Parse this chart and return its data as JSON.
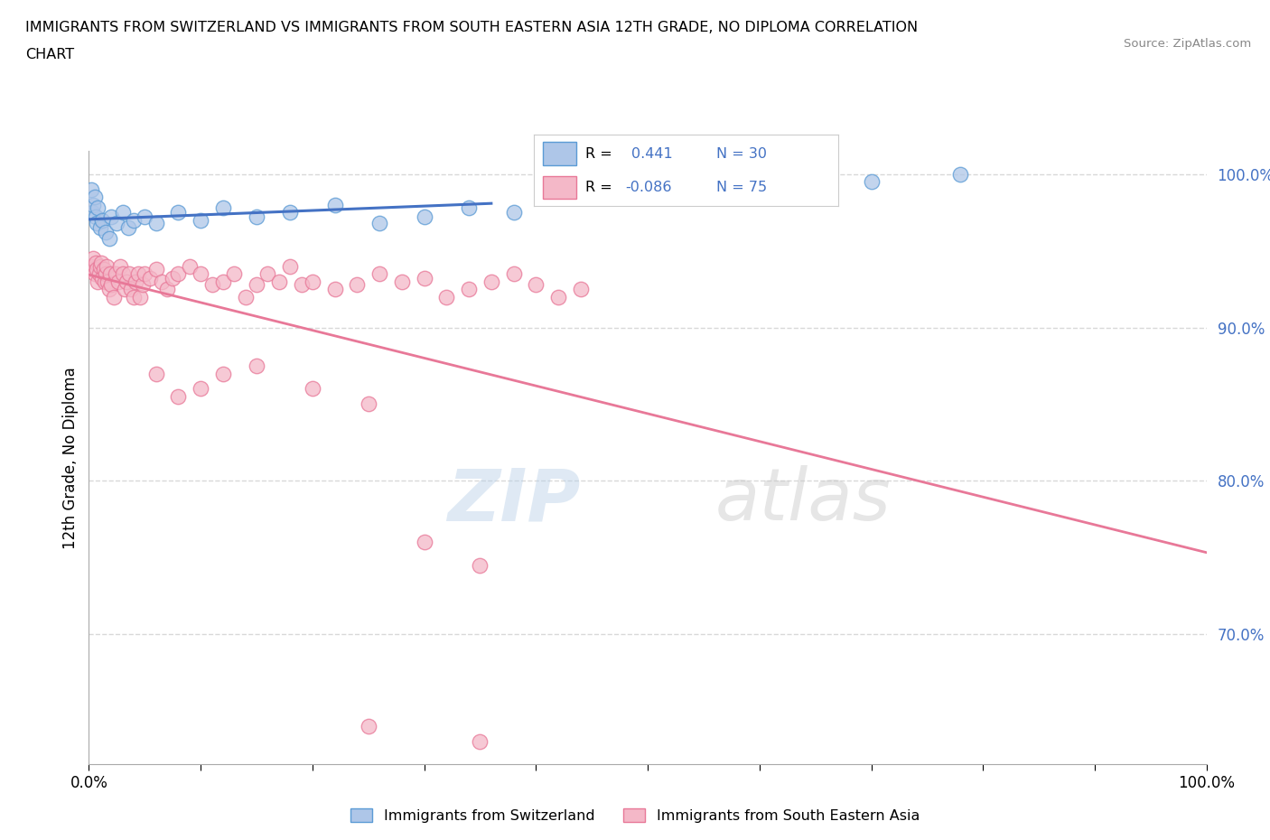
{
  "title_line1": "IMMIGRANTS FROM SWITZERLAND VS IMMIGRANTS FROM SOUTH EASTERN ASIA 12TH GRADE, NO DIPLOMA CORRELATION",
  "title_line2": "CHART",
  "source_text": "Source: ZipAtlas.com",
  "ylabel": "12th Grade, No Diploma",
  "color_swiss": "#aec6e8",
  "color_swiss_edge": "#5b9bd5",
  "color_swiss_line": "#4472c4",
  "color_sea": "#f4b8c8",
  "color_sea_edge": "#e87898",
  "color_sea_line": "#e87898",
  "legend_r1_val": "0.441",
  "legend_r2_val": "-0.086",
  "legend_n1": "30",
  "legend_n2": "75",
  "swiss_x": [
    0.002,
    0.003,
    0.004,
    0.005,
    0.006,
    0.007,
    0.008,
    0.01,
    0.012,
    0.015,
    0.018,
    0.02,
    0.025,
    0.03,
    0.035,
    0.04,
    0.05,
    0.06,
    0.08,
    0.1,
    0.12,
    0.15,
    0.18,
    0.22,
    0.26,
    0.3,
    0.34,
    0.38,
    0.7,
    0.78
  ],
  "swiss_y": [
    0.99,
    0.975,
    0.98,
    0.985,
    0.972,
    0.968,
    0.978,
    0.965,
    0.97,
    0.962,
    0.958,
    0.972,
    0.968,
    0.975,
    0.965,
    0.97,
    0.972,
    0.968,
    0.975,
    0.97,
    0.978,
    0.972,
    0.975,
    0.98,
    0.968,
    0.972,
    0.978,
    0.975,
    0.995,
    1.0
  ],
  "sea_x": [
    0.002,
    0.003,
    0.004,
    0.005,
    0.006,
    0.007,
    0.008,
    0.009,
    0.01,
    0.011,
    0.012,
    0.013,
    0.014,
    0.015,
    0.016,
    0.017,
    0.018,
    0.019,
    0.02,
    0.022,
    0.024,
    0.026,
    0.028,
    0.03,
    0.032,
    0.034,
    0.036,
    0.038,
    0.04,
    0.042,
    0.044,
    0.046,
    0.048,
    0.05,
    0.055,
    0.06,
    0.065,
    0.07,
    0.075,
    0.08,
    0.09,
    0.1,
    0.11,
    0.12,
    0.13,
    0.14,
    0.15,
    0.16,
    0.17,
    0.18,
    0.19,
    0.2,
    0.22,
    0.24,
    0.26,
    0.28,
    0.3,
    0.32,
    0.34,
    0.36,
    0.38,
    0.4,
    0.42,
    0.44,
    0.06,
    0.08,
    0.1,
    0.12,
    0.15,
    0.2,
    0.25,
    0.3,
    0.35,
    0.25,
    0.35
  ],
  "sea_y": [
    0.94,
    0.938,
    0.945,
    0.935,
    0.942,
    0.938,
    0.93,
    0.935,
    0.94,
    0.942,
    0.932,
    0.938,
    0.93,
    0.935,
    0.94,
    0.93,
    0.925,
    0.935,
    0.928,
    0.92,
    0.935,
    0.93,
    0.94,
    0.935,
    0.925,
    0.93,
    0.935,
    0.925,
    0.92,
    0.93,
    0.935,
    0.92,
    0.928,
    0.935,
    0.932,
    0.938,
    0.93,
    0.925,
    0.932,
    0.935,
    0.94,
    0.935,
    0.928,
    0.93,
    0.935,
    0.92,
    0.928,
    0.935,
    0.93,
    0.94,
    0.928,
    0.93,
    0.925,
    0.928,
    0.935,
    0.93,
    0.932,
    0.92,
    0.925,
    0.93,
    0.935,
    0.928,
    0.92,
    0.925,
    0.87,
    0.855,
    0.86,
    0.87,
    0.875,
    0.86,
    0.85,
    0.76,
    0.745,
    0.64,
    0.63
  ],
  "xlim": [
    0.0,
    1.0
  ],
  "ylim": [
    0.615,
    1.015
  ],
  "yticks": [
    0.7,
    0.8,
    0.9,
    1.0
  ],
  "xticks": [
    0.0,
    0.1,
    0.2,
    0.3,
    0.4,
    0.5,
    0.6,
    0.7,
    0.8,
    0.9,
    1.0
  ],
  "background_color": "#ffffff",
  "grid_color": "#d8d8d8",
  "watermark_zip_color": "#b8d0e8",
  "watermark_atlas_color": "#c8c8c8"
}
